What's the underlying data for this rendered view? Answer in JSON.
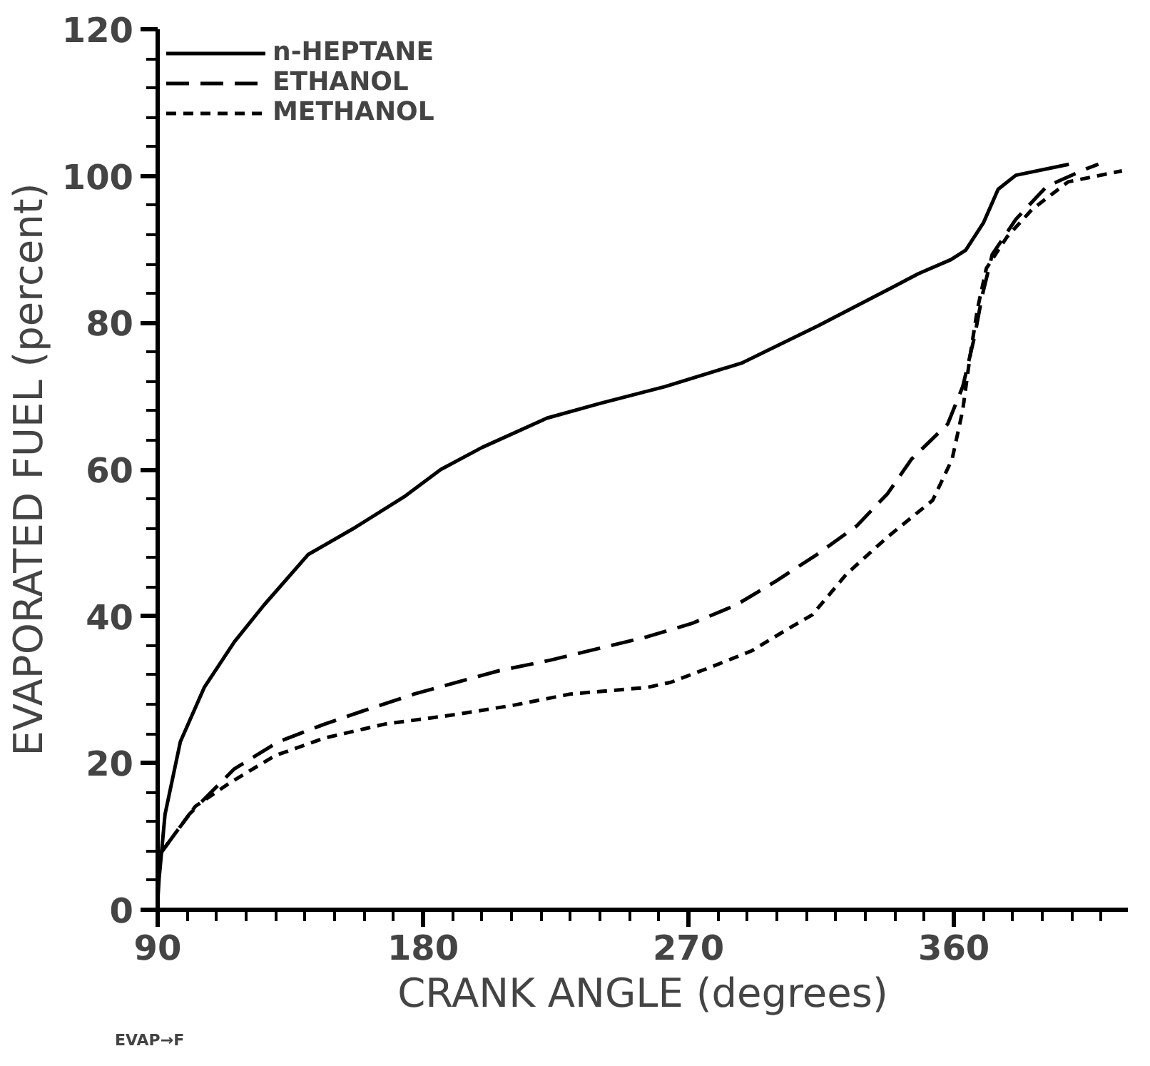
{
  "chart_data": {
    "type": "line",
    "xlabel": "CRANK ANGLE (degrees)",
    "ylabel": "EVAPORATED FUEL (percent)",
    "annotations": [
      "EVAP→F"
    ],
    "xlim": [
      90,
      419
    ],
    "ylim": [
      0,
      120
    ],
    "xticks": [
      90,
      {
        "value": 100,
        "label": null
      },
      {
        "value": 110,
        "label": null
      },
      {
        "value": 120,
        "label": null
      },
      {
        "value": 130,
        "label": null
      },
      {
        "value": 140,
        "label": null
      },
      {
        "value": 150,
        "label": null
      },
      {
        "value": 160,
        "label": null
      },
      {
        "value": 170,
        "label": null
      },
      180,
      {
        "value": 190,
        "label": null
      },
      {
        "value": 200,
        "label": null
      },
      {
        "value": 210,
        "label": null
      },
      {
        "value": 220,
        "label": null
      },
      {
        "value": 230,
        "label": null
      },
      {
        "value": 240,
        "label": null
      },
      {
        "value": 250,
        "label": null
      },
      {
        "value": 260,
        "label": null
      },
      270,
      {
        "value": 280,
        "label": null
      },
      {
        "value": 290,
        "label": null
      },
      {
        "value": 300,
        "label": null
      },
      {
        "value": 310,
        "label": null
      },
      {
        "value": 320,
        "label": null
      },
      {
        "value": 330,
        "label": null
      },
      {
        "value": 340,
        "label": null
      },
      {
        "value": 350,
        "label": null
      },
      360,
      {
        "value": 370,
        "label": null
      },
      {
        "value": 380,
        "label": null
      },
      {
        "value": 390,
        "label": null
      },
      {
        "value": 400,
        "label": null
      },
      {
        "value": 410,
        "label": null
      }
    ],
    "yticks": [
      0,
      {
        "value": 4,
        "label": null
      },
      {
        "value": 8,
        "label": null
      },
      {
        "value": 12,
        "label": null
      },
      {
        "value": 16,
        "label": null
      },
      20,
      {
        "value": 24,
        "label": null
      },
      {
        "value": 28,
        "label": null
      },
      {
        "value": 32,
        "label": null
      },
      {
        "value": 36,
        "label": null
      },
      40,
      {
        "value": 44,
        "label": null
      },
      {
        "value": 48,
        "label": null
      },
      {
        "value": 52,
        "label": null
      },
      {
        "value": 56,
        "label": null
      },
      60,
      {
        "value": 64,
        "label": null
      },
      {
        "value": 68,
        "label": null
      },
      {
        "value": 72,
        "label": null
      },
      {
        "value": 76,
        "label": null
      },
      80,
      {
        "value": 84,
        "label": null
      },
      {
        "value": 88,
        "label": null
      },
      {
        "value": 92,
        "label": null
      },
      {
        "value": 96,
        "label": null
      },
      100,
      {
        "value": 104,
        "label": null
      },
      {
        "value": 108,
        "label": null
      },
      {
        "value": 112,
        "label": null
      },
      {
        "value": 116,
        "label": null
      },
      120
    ],
    "grid": false,
    "legend": "top left",
    "marker": "none",
    "series": [
      {
        "name": "n-HEPTANE",
        "color": "#000000",
        "line_style": "solid",
        "x": [
          90,
          90.5,
          92.5,
          97.7,
          105.8,
          116,
          126,
          141,
          157,
          174,
          186,
          200,
          222,
          240,
          262,
          288,
          314,
          339,
          348,
          359,
          364,
          370,
          375,
          381,
          399
        ],
        "values": [
          1,
          4.3,
          13,
          22.9,
          30.3,
          36.5,
          41.5,
          48.4,
          52.1,
          56.4,
          60,
          63,
          67,
          69,
          71.3,
          74.5,
          79.6,
          84.8,
          86.7,
          88.6,
          89.9,
          93.6,
          98.2,
          100.1,
          101.6
        ]
      },
      {
        "name": "ETHANOL",
        "color": "#000000",
        "line_style": "dashed",
        "x": [
          90.5,
          100.7,
          116,
          131,
          146.6,
          160.4,
          177,
          206,
          223,
          238.5,
          256,
          271,
          286,
          299.7,
          313.5,
          327,
          337.5,
          345.6,
          357.9,
          363,
          367,
          369.6,
          373,
          381,
          391.5,
          405,
          409
        ],
        "values": [
          7.4,
          13,
          19.2,
          22.9,
          25.3,
          27.2,
          29.4,
          32.6,
          34,
          35.5,
          37.2,
          39,
          41.5,
          44.8,
          48.4,
          52.3,
          56.7,
          61.4,
          66.2,
          71.3,
          78.1,
          83.7,
          89.3,
          94.1,
          98.6,
          101,
          101.6
        ]
      },
      {
        "name": "METHANOL",
        "color": "#000000",
        "line_style": "dotted",
        "x": [
          91.5,
          102.8,
          114.5,
          129.8,
          146.6,
          167,
          191,
          211,
          230,
          256,
          264,
          277.8,
          291.5,
          303,
          312,
          323.7,
          337.5,
          352.8,
          359.4,
          363,
          365.5,
          368,
          371,
          378,
          386.4,
          398.7,
          417
        ],
        "values": [
          8,
          14.1,
          17.3,
          21,
          23.4,
          25.3,
          26.6,
          27.9,
          29.4,
          30.3,
          31,
          33.1,
          35.3,
          38.1,
          40.2,
          45.8,
          50.8,
          55.8,
          61.4,
          68.1,
          75.5,
          81.9,
          87.4,
          91.7,
          95.4,
          99.2,
          100.7
        ]
      }
    ]
  }
}
